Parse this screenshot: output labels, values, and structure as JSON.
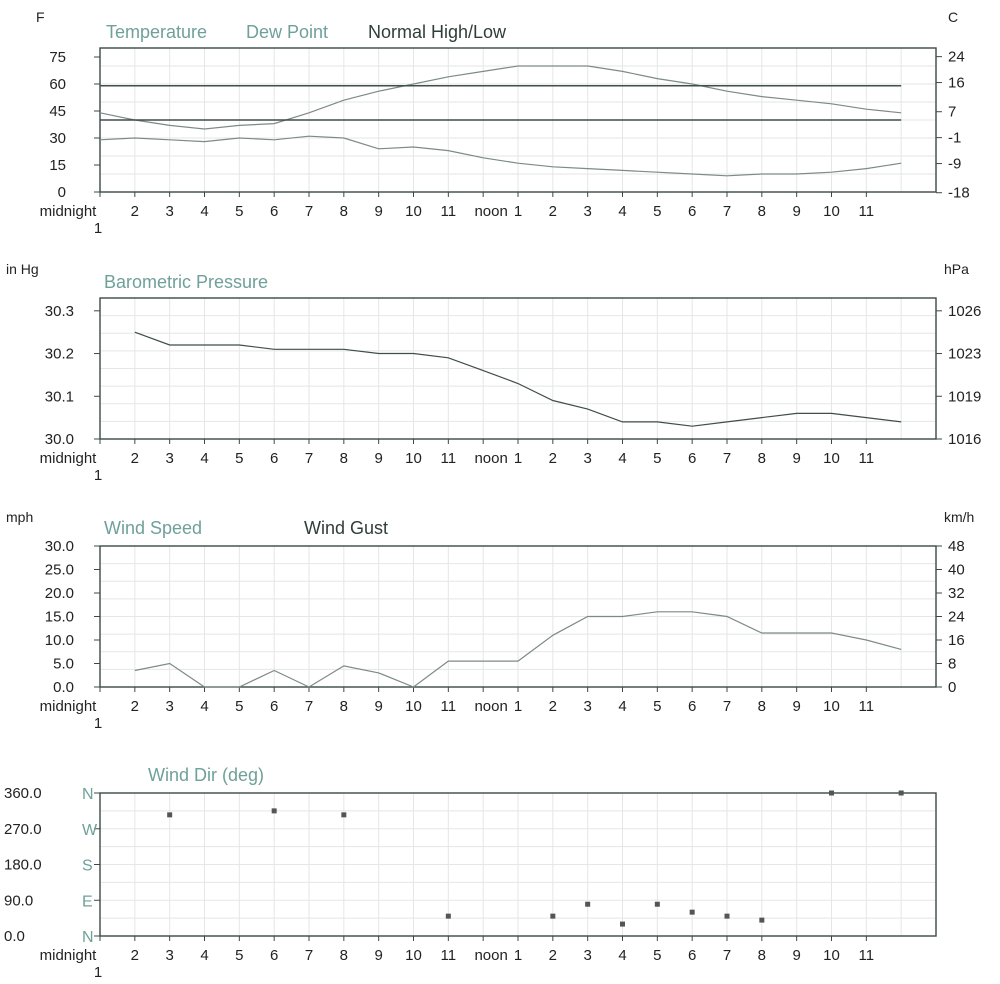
{
  "colors": {
    "frame": "#3a4a48",
    "grid": "#e3e7e6",
    "teal_label": "#6fa09a",
    "dark_label": "#2f3d3b",
    "line_light": "#7d8a88",
    "line_dark": "#404d4b",
    "tick_text": "#222222",
    "marker": "#555555"
  },
  "x_ticks": [
    "midnight",
    "2",
    "3",
    "4",
    "5",
    "6",
    "7",
    "8",
    "9",
    "10",
    "11",
    "noon",
    "1",
    "2",
    "3",
    "4",
    "5",
    "6",
    "7",
    "8",
    "9",
    "10",
    "11"
  ],
  "x_tick_sub": "1",
  "chart_data": [
    {
      "type": "line",
      "name": "temperature",
      "left_unit": "F",
      "right_unit": "C",
      "legend": [
        "Temperature",
        "Dew Point",
        "Normal High/Low"
      ],
      "ylim": [
        0,
        80
      ],
      "y_ticks_left": [
        "75",
        "60",
        "45",
        "30",
        "15",
        "0"
      ],
      "y_ticks_left_values": [
        75,
        60,
        45,
        30,
        15,
        0
      ],
      "y_ticks_right": [
        "24",
        "16",
        "7",
        "-1",
        "-9",
        "-18"
      ],
      "y_ticks_right_values": [
        75.2,
        60.8,
        44.6,
        30.2,
        15.8,
        -0.4
      ],
      "x": [
        1,
        2,
        3,
        4,
        5,
        6,
        7,
        8,
        9,
        10,
        11,
        12,
        13,
        14,
        15,
        16,
        17,
        18,
        19,
        20,
        21,
        22,
        23,
        24
      ],
      "series": [
        {
          "name": "Temperature",
          "values": [
            44,
            40,
            37,
            35,
            37,
            38,
            44,
            51,
            56,
            60,
            64,
            67,
            70,
            70,
            70,
            67,
            63,
            60,
            56,
            53,
            51,
            49,
            46,
            44
          ]
        },
        {
          "name": "Dew Point",
          "values": [
            29,
            30,
            29,
            28,
            30,
            29,
            31,
            30,
            24,
            25,
            23,
            19,
            16,
            14,
            13,
            12,
            11,
            10,
            9,
            10,
            10,
            11,
            13,
            16
          ]
        },
        {
          "name": "Normal High",
          "values": [
            59,
            59,
            59,
            59,
            59,
            59,
            59,
            59,
            59,
            59,
            59,
            59,
            59,
            59,
            59,
            59,
            59,
            59,
            59,
            59,
            59,
            59,
            59,
            59
          ]
        },
        {
          "name": "Normal Low",
          "values": [
            40,
            40,
            40,
            40,
            40,
            40,
            40,
            40,
            40,
            40,
            40,
            40,
            40,
            40,
            40,
            40,
            40,
            40,
            40,
            40,
            40,
            40,
            40,
            40
          ]
        }
      ]
    },
    {
      "type": "line",
      "name": "pressure",
      "left_unit": "in Hg",
      "right_unit": "hPa",
      "legend": [
        "Barometric Pressure"
      ],
      "ylim": [
        30.0,
        30.33
      ],
      "y_ticks_left": [
        "30.3",
        "30.2",
        "30.1",
        "30.0"
      ],
      "y_ticks_left_values": [
        30.3,
        30.2,
        30.1,
        30.0
      ],
      "y_ticks_right": [
        "1026",
        "1023",
        "1019",
        "1016"
      ],
      "y_ticks_right_values": [
        30.3,
        30.2,
        30.1,
        30.0
      ],
      "x": [
        2,
        3,
        4,
        5,
        6,
        7,
        8,
        9,
        10,
        11,
        12,
        13,
        14,
        15,
        16,
        17,
        18,
        19,
        20,
        21,
        22,
        23,
        24
      ],
      "series": [
        {
          "name": "Barometric Pressure",
          "values": [
            30.25,
            30.22,
            30.22,
            30.22,
            30.21,
            30.21,
            30.21,
            30.2,
            30.2,
            30.19,
            30.16,
            30.13,
            30.09,
            30.07,
            30.04,
            30.04,
            30.03,
            30.04,
            30.05,
            30.06,
            30.06,
            30.05,
            30.04
          ]
        }
      ]
    },
    {
      "type": "line",
      "name": "wind",
      "left_unit": "mph",
      "right_unit": "km/h",
      "legend": [
        "Wind Speed",
        "Wind Gust"
      ],
      "ylim": [
        0,
        30
      ],
      "y_ticks_left": [
        "30.0",
        "25.0",
        "20.0",
        "15.0",
        "10.0",
        "5.0",
        "0.0"
      ],
      "y_ticks_left_values": [
        30,
        25,
        20,
        15,
        10,
        5,
        0
      ],
      "y_ticks_right": [
        "48",
        "40",
        "32",
        "24",
        "16",
        "8",
        "0"
      ],
      "y_ticks_right_values": [
        30,
        25,
        20,
        15,
        10,
        5,
        0
      ],
      "x": [
        2,
        3,
        4,
        5,
        6,
        7,
        8,
        9,
        10,
        11,
        12,
        13,
        14,
        15,
        16,
        17,
        18,
        19,
        20,
        21,
        22,
        23,
        24
      ],
      "series": [
        {
          "name": "Wind Speed",
          "values": [
            3.5,
            5,
            0,
            0,
            3.5,
            0,
            4.5,
            3,
            0,
            5.5,
            5.5,
            5.5,
            11,
            15,
            15,
            16,
            16,
            15,
            11.5,
            11.5,
            11.5,
            10,
            8
          ]
        }
      ]
    },
    {
      "type": "scatter",
      "name": "wind_dir",
      "left_unit": "",
      "right_unit": "",
      "legend": [
        "Wind Dir (deg)"
      ],
      "ylim": [
        0,
        360
      ],
      "y_ticks_left": [
        "360.0",
        "270.0",
        "180.0",
        "90.0",
        "0.0"
      ],
      "y_ticks_left_values": [
        360,
        270,
        180,
        90,
        0
      ],
      "compass_labels": [
        "N",
        "W",
        "S",
        "E",
        "N"
      ],
      "x": [
        3,
        6,
        8,
        11,
        14,
        15,
        16,
        17,
        18,
        19,
        20,
        22,
        24
      ],
      "series": [
        {
          "name": "Wind Dir (deg)",
          "values": [
            305,
            315,
            305,
            50,
            50,
            80,
            30,
            80,
            60,
            50,
            40,
            360,
            360
          ]
        }
      ]
    }
  ]
}
